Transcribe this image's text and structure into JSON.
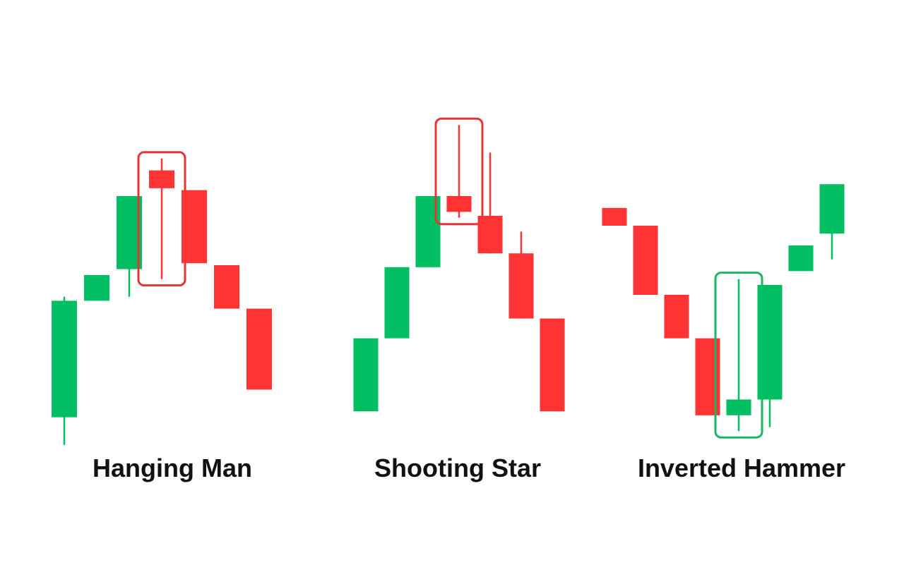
{
  "colors": {
    "bull": "#00BE61",
    "bear": "#FF3333",
    "frame_red": "#E53535",
    "frame_green": "#1BB760",
    "text": "#111111"
  },
  "chart_data": [
    {
      "type": "candlestick",
      "title": "Hanging Man",
      "highlight_index": 3,
      "highlight_color": "red",
      "candles": [
        {
          "open": 3.0,
          "close": 62.0,
          "high": 64.0,
          "low": -11.0
        },
        {
          "open": 62.0,
          "close": 75.0,
          "high": 75.0,
          "low": 62.0
        },
        {
          "open": 78.0,
          "close": 115.0,
          "high": 115.0,
          "low": 64.0
        },
        {
          "open": 128.0,
          "close": 119.0,
          "high": 134.0,
          "low": 73.0
        },
        {
          "open": 118.0,
          "close": 81.0,
          "high": 118.0,
          "low": 81.0
        },
        {
          "open": 80.0,
          "close": 58.0,
          "high": 80.0,
          "low": 58.0
        },
        {
          "open": 58.0,
          "close": 17.0,
          "high": 58.0,
          "low": 17.0
        }
      ]
    },
    {
      "type": "candlestick",
      "title": "Shooting Star",
      "highlight_index": 3,
      "highlight_color": "red",
      "candles": [
        {
          "open": 6.0,
          "close": 43.0,
          "high": 43.0,
          "low": 6.0
        },
        {
          "open": 43.0,
          "close": 79.0,
          "high": 79.0,
          "low": 43.0
        },
        {
          "open": 79.0,
          "close": 115.0,
          "high": 115.0,
          "low": 79.0
        },
        {
          "open": 115.0,
          "close": 107.0,
          "high": 151.0,
          "low": 104.0
        },
        {
          "open": 105.0,
          "close": 86.0,
          "high": 137.0,
          "low": 86.0
        },
        {
          "open": 86.0,
          "close": 53.0,
          "high": 97.0,
          "low": 53.0
        },
        {
          "open": 53.0,
          "close": 6.0,
          "high": 53.0,
          "low": 6.0
        }
      ]
    },
    {
      "type": "candlestick",
      "title": "Inverted Hammer",
      "highlight_index": 4,
      "highlight_color": "green",
      "candles": [
        {
          "open": 109.0,
          "close": 100.0,
          "high": 109.0,
          "low": 100.0
        },
        {
          "open": 100.0,
          "close": 65.0,
          "high": 100.0,
          "low": 65.0
        },
        {
          "open": 65.0,
          "close": 43.0,
          "high": 65.0,
          "low": 43.0
        },
        {
          "open": 43.0,
          "close": 4.0,
          "high": 43.0,
          "low": 4.0
        },
        {
          "open": 4.0,
          "close": 12.0,
          "high": 73.0,
          "low": -4.0
        },
        {
          "open": 12.0,
          "close": 70.0,
          "high": 70.0,
          "low": -2.0
        },
        {
          "open": 77.0,
          "close": 90.0,
          "high": 90.0,
          "low": 77.0
        },
        {
          "open": 96.0,
          "close": 121.0,
          "high": 121.0,
          "low": 83.0
        }
      ]
    }
  ]
}
